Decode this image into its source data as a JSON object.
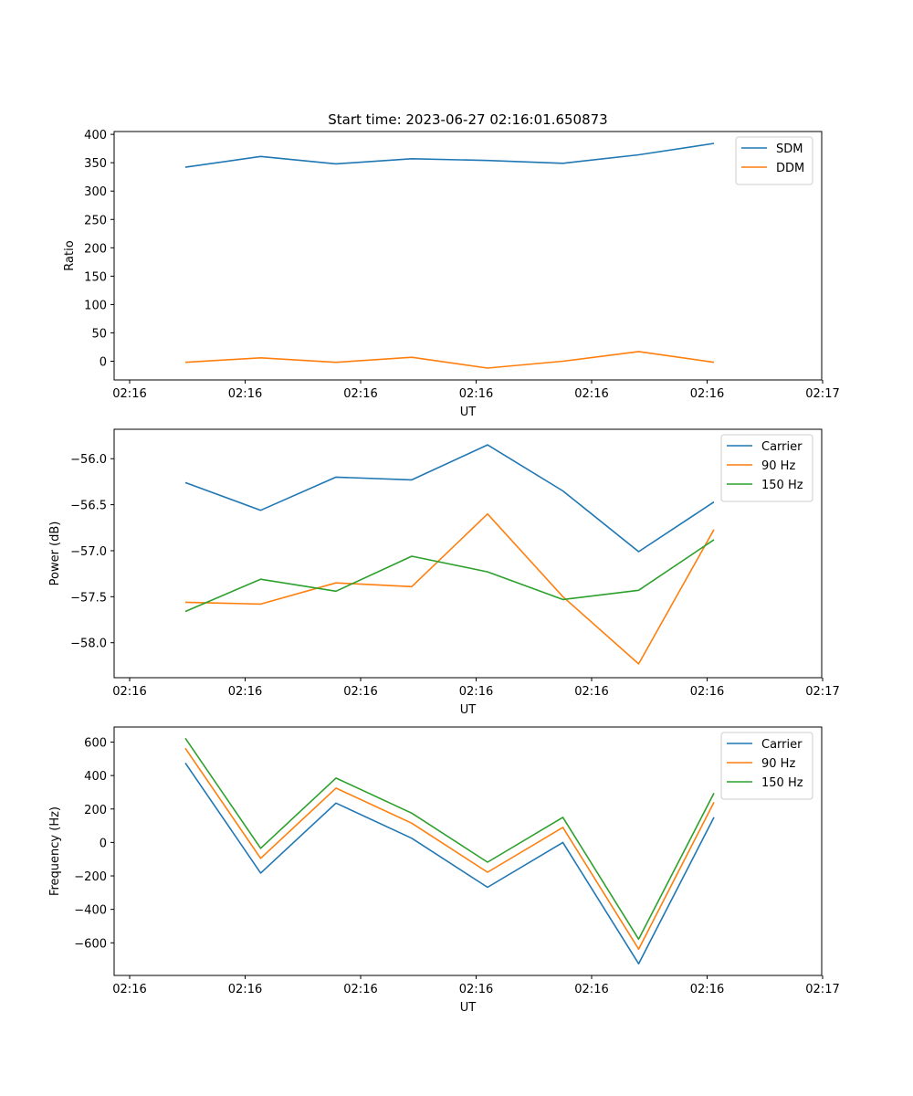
{
  "figure": {
    "title": "Start time: 2023-06-27 02:16:01.650873"
  },
  "chart_data": [
    {
      "type": "line",
      "title": "Start time: 2023-06-27 02:16:01.650873",
      "xlabel": "UT",
      "ylabel": "Ratio",
      "x_tick_labels": [
        "02:16",
        "02:16",
        "02:16",
        "02:16",
        "02:16",
        "02:16",
        "02:17"
      ],
      "y_ticks": [
        0,
        50,
        100,
        150,
        200,
        250,
        300,
        350,
        400
      ],
      "y_tick_labels": [
        "0",
        "50",
        "100",
        "150",
        "200",
        "250",
        "300",
        "350",
        "400"
      ],
      "ylim": [
        -33,
        405
      ],
      "grid": false,
      "legend_placement": "top-right",
      "series": [
        {
          "name": "SDM",
          "color": "#1f77b4",
          "values": [
            342,
            361,
            348,
            357,
            354,
            349,
            364,
            384
          ]
        },
        {
          "name": "DDM",
          "color": "#ff7f0e",
          "values": [
            -2,
            6,
            -2,
            7,
            -12,
            0,
            17,
            -2
          ]
        }
      ]
    },
    {
      "type": "line",
      "xlabel": "UT",
      "ylabel": "Power (dB)",
      "x_tick_labels": [
        "02:16",
        "02:16",
        "02:16",
        "02:16",
        "02:16",
        "02:16",
        "02:17"
      ],
      "y_ticks": [
        -58.0,
        -57.5,
        -57.0,
        -56.5,
        -56.0
      ],
      "y_tick_labels": [
        "−58.0",
        "−57.5",
        "−57.0",
        "−56.5",
        "−56.0"
      ],
      "ylim": [
        -58.38,
        -55.68
      ],
      "grid": false,
      "legend_placement": "top-right",
      "series": [
        {
          "name": "Carrier",
          "color": "#1f77b4",
          "values": [
            -56.26,
            -56.56,
            -56.2,
            -56.23,
            -55.85,
            -56.35,
            -57.01,
            -56.47
          ]
        },
        {
          "name": "90 Hz",
          "color": "#ff7f0e",
          "values": [
            -57.56,
            -57.58,
            -57.35,
            -57.39,
            -56.6,
            -57.5,
            -58.23,
            -56.77
          ]
        },
        {
          "name": "150 Hz",
          "color": "#2ca02c",
          "values": [
            -57.66,
            -57.31,
            -57.44,
            -57.06,
            -57.23,
            -57.53,
            -57.43,
            -56.88
          ]
        }
      ]
    },
    {
      "type": "line",
      "xlabel": "UT",
      "ylabel": "Frequency (Hz)",
      "x_tick_labels": [
        "02:16",
        "02:16",
        "02:16",
        "02:16",
        "02:16",
        "02:16",
        "02:17"
      ],
      "y_ticks": [
        -600,
        -400,
        -200,
        0,
        200,
        400,
        600
      ],
      "y_tick_labels": [
        "−600",
        "−400",
        "−200",
        "0",
        "200",
        "400",
        "600"
      ],
      "ylim": [
        -795,
        690
      ],
      "grid": false,
      "legend_placement": "top-right",
      "series": [
        {
          "name": "Carrier",
          "color": "#1f77b4",
          "values": [
            475,
            -183,
            235,
            25,
            -268,
            0,
            -725,
            150
          ]
        },
        {
          "name": "90 Hz",
          "color": "#ff7f0e",
          "values": [
            563,
            -95,
            325,
            115,
            -178,
            90,
            -638,
            240
          ]
        },
        {
          "name": "150 Hz",
          "color": "#2ca02c",
          "values": [
            623,
            -35,
            385,
            175,
            -118,
            150,
            -578,
            295
          ]
        }
      ]
    }
  ]
}
